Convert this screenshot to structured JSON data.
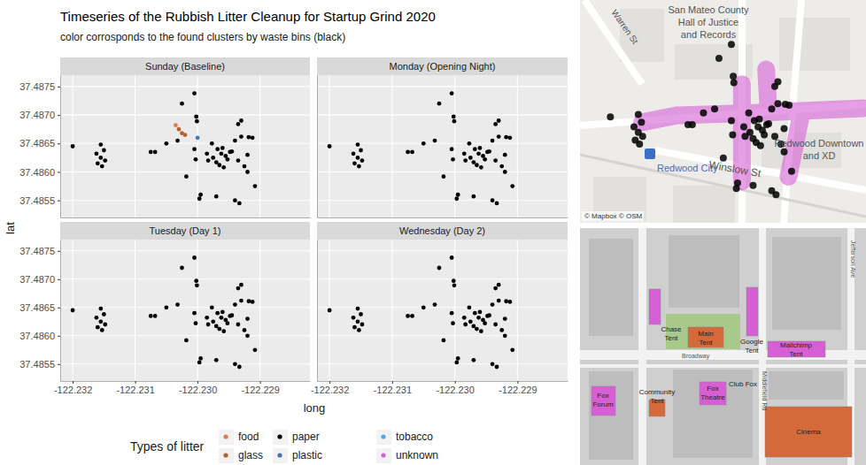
{
  "title": "Timeseries of the Rubbish Litter Cleanup for Startup Grind 2020",
  "subtitle": "color corrosponds to the found clusters by waste bins (black)",
  "xlabel": "long",
  "ylabel": "lat",
  "legend_title": "Types of litter",
  "legend_items": [
    {
      "name": "food",
      "color": "#e07b54"
    },
    {
      "name": "glass",
      "color": "#b8602c"
    },
    {
      "name": "paper",
      "color": "#000000"
    },
    {
      "name": "plastic",
      "color": "#3e78b2"
    },
    {
      "name": "tobacco",
      "color": "#5aa7dd"
    },
    {
      "name": "unknown",
      "color": "#d65fd6"
    }
  ],
  "chart_data": [
    {
      "type": "scatter",
      "title": "Sunday (Baseline)",
      "grid": true,
      "tick_labels": "y",
      "xlim": [
        -122.2322,
        -122.2282
      ],
      "ylim": [
        37.4852,
        37.4877
      ],
      "xticks": [
        -122.232,
        -122.231,
        -122.23,
        -122.229
      ],
      "yticks": [
        37.4855,
        {
          "value": 37.486,
          "label": "37.4860"
        },
        37.4865,
        {
          "value": 37.487,
          "label": "37.4870"
        },
        37.4875
      ],
      "series": [
        {
          "name": "paper",
          "x": [
            -122.232,
            -122.23155,
            -122.2315,
            -122.23162,
            -122.23155,
            -122.23148,
            -122.2316,
            -122.23153,
            -122.23075,
            -122.23068,
            -122.2305,
            -122.23032,
            -122.23025,
            -122.23005,
            -122.23002,
            -122.23001,
            -122.23005,
            -122.23003,
            -122.23018,
            -122.22995,
            -122.22997,
            -122.2297,
            -122.22977,
            -122.22968,
            -122.22962,
            -122.22955,
            -122.22975,
            -122.22983,
            -122.2297,
            -122.22952,
            -122.22948,
            -122.2296,
            -122.22985,
            -122.2293,
            -122.22935,
            -122.2294,
            -122.22945,
            -122.2293,
            -122.22918,
            -122.22912,
            -122.2292,
            -122.22935,
            -122.22925,
            -122.2292,
            -122.2294,
            -122.22933,
            -122.22908,
            -122.22965,
            -122.22958
          ],
          "y": [
            37.48645,
            37.48648,
            37.48638,
            37.48632,
            37.48625,
            37.4862,
            37.48615,
            37.4861,
            37.48635,
            37.48635,
            37.4865,
            37.48655,
            37.4872,
            37.48738,
            37.48697,
            37.48689,
            37.4864,
            37.48622,
            37.48592,
            37.4856,
            37.48553,
            37.48557,
            37.4865,
            37.4864,
            37.48632,
            37.48628,
            37.48625,
            37.4862,
            37.48617,
            37.48622,
            37.48635,
            37.48642,
            37.48632,
            37.4869,
            37.48684,
            37.48655,
            37.48636,
            37.48662,
            37.48661,
            37.4866,
            37.4863,
            37.4862,
            37.4861,
            37.486,
            37.4855,
            37.48545,
            37.48575,
            37.48612,
            37.48608
          ]
        },
        {
          "name": "food",
          "x": [
            -122.23035
          ],
          "y": [
            37.48682
          ]
        },
        {
          "name": "glass",
          "x": [
            -122.2303,
            -122.23025,
            -122.2302
          ],
          "y": [
            37.48675,
            37.48668,
            37.48665
          ]
        },
        {
          "name": "plastic",
          "x": [
            -122.23
          ],
          "y": [
            37.4866
          ]
        }
      ]
    },
    {
      "type": "scatter",
      "title": "Monday (Opening Night)",
      "grid": true,
      "tick_labels": false,
      "xlim": [
        -122.2322,
        -122.2282
      ],
      "ylim": [
        37.4852,
        37.4877
      ],
      "xticks": [
        -122.232,
        -122.231,
        -122.23,
        -122.229
      ],
      "yticks": [
        37.4855,
        37.486,
        37.4865,
        37.487,
        37.4875
      ],
      "series": [
        {
          "name": "paper",
          "x": [
            -122.232,
            -122.23155,
            -122.2315,
            -122.23162,
            -122.23155,
            -122.23148,
            -122.2316,
            -122.23153,
            -122.23075,
            -122.23068,
            -122.2305,
            -122.23032,
            -122.23025,
            -122.23005,
            -122.23002,
            -122.23001,
            -122.23005,
            -122.23003,
            -122.23018,
            -122.22995,
            -122.22997,
            -122.2297,
            -122.22977,
            -122.22968,
            -122.22962,
            -122.22955,
            -122.22975,
            -122.22983,
            -122.2297,
            -122.22952,
            -122.22948,
            -122.2296,
            -122.22985,
            -122.2293,
            -122.22935,
            -122.2294,
            -122.22945,
            -122.2293,
            -122.22918,
            -122.22912,
            -122.2292,
            -122.22935,
            -122.22925,
            -122.2292,
            -122.2294,
            -122.22933,
            -122.22908,
            -122.22965,
            -122.22958
          ],
          "y": [
            37.48645,
            37.48648,
            37.48638,
            37.48632,
            37.48625,
            37.4862,
            37.48615,
            37.4861,
            37.48635,
            37.48635,
            37.4865,
            37.48655,
            37.4872,
            37.48738,
            37.48697,
            37.48689,
            37.4864,
            37.48622,
            37.48592,
            37.4856,
            37.48553,
            37.48557,
            37.4865,
            37.4864,
            37.48632,
            37.48628,
            37.48625,
            37.4862,
            37.48617,
            37.48622,
            37.48635,
            37.48642,
            37.48632,
            37.4869,
            37.48684,
            37.48655,
            37.48636,
            37.48662,
            37.48661,
            37.4866,
            37.4863,
            37.4862,
            37.4861,
            37.486,
            37.4855,
            37.48545,
            37.48575,
            37.48612,
            37.48608
          ]
        }
      ]
    },
    {
      "type": "scatter",
      "title": "Tuesday (Day 1)",
      "grid": true,
      "tick_labels": true,
      "xlim": [
        -122.2322,
        -122.2282
      ],
      "ylim": [
        37.4852,
        37.4877
      ],
      "xticks": [
        -122.232,
        -122.231,
        {
          "value": -122.23,
          "label": "-122.230"
        },
        -122.229
      ],
      "yticks": [
        37.4855,
        {
          "value": 37.486,
          "label": "37.4860"
        },
        37.4865,
        {
          "value": 37.487,
          "label": "37.4870"
        },
        37.4875
      ],
      "series": [
        {
          "name": "paper",
          "x": [
            -122.232,
            -122.23155,
            -122.2315,
            -122.23162,
            -122.23155,
            -122.23148,
            -122.2316,
            -122.23153,
            -122.23075,
            -122.23068,
            -122.2305,
            -122.23032,
            -122.23025,
            -122.23005,
            -122.23002,
            -122.23001,
            -122.23005,
            -122.23003,
            -122.23018,
            -122.22995,
            -122.22997,
            -122.2297,
            -122.22977,
            -122.22968,
            -122.22962,
            -122.22955,
            -122.22975,
            -122.22983,
            -122.2297,
            -122.22952,
            -122.22948,
            -122.2296,
            -122.22985,
            -122.2293,
            -122.22935,
            -122.2294,
            -122.22945,
            -122.2293,
            -122.22918,
            -122.22912,
            -122.2292,
            -122.22935,
            -122.22925,
            -122.2292,
            -122.2294,
            -122.22933,
            -122.22908,
            -122.22965,
            -122.22958
          ],
          "y": [
            37.48645,
            37.48648,
            37.48638,
            37.48632,
            37.48625,
            37.4862,
            37.48615,
            37.4861,
            37.48635,
            37.48635,
            37.4865,
            37.48655,
            37.4872,
            37.48738,
            37.48697,
            37.48689,
            37.4864,
            37.48622,
            37.48592,
            37.4856,
            37.48553,
            37.48557,
            37.4865,
            37.4864,
            37.48632,
            37.48628,
            37.48625,
            37.4862,
            37.48617,
            37.48622,
            37.48635,
            37.48642,
            37.48632,
            37.4869,
            37.48684,
            37.48655,
            37.48636,
            37.48662,
            37.48661,
            37.4866,
            37.4863,
            37.4862,
            37.4861,
            37.486,
            37.4855,
            37.48545,
            37.48575,
            37.48612,
            37.48608
          ]
        }
      ]
    },
    {
      "type": "scatter",
      "title": "Wednesday (Day 2)",
      "grid": true,
      "tick_labels": "x",
      "xlim": [
        -122.2322,
        -122.2282
      ],
      "ylim": [
        37.4852,
        37.4877
      ],
      "xticks": [
        -122.232,
        -122.231,
        {
          "value": -122.23,
          "label": "-122.230"
        },
        -122.229
      ],
      "yticks": [
        37.4855,
        37.486,
        37.4865,
        37.487,
        37.4875
      ],
      "series": [
        {
          "name": "paper",
          "x": [
            -122.232,
            -122.23155,
            -122.2315,
            -122.23162,
            -122.23155,
            -122.23148,
            -122.2316,
            -122.23153,
            -122.23075,
            -122.23068,
            -122.2305,
            -122.23032,
            -122.23025,
            -122.23005,
            -122.23002,
            -122.23001,
            -122.23005,
            -122.23003,
            -122.23018,
            -122.22995,
            -122.22997,
            -122.2297,
            -122.22977,
            -122.22968,
            -122.22962,
            -122.22955,
            -122.22975,
            -122.22983,
            -122.2297,
            -122.22952,
            -122.22948,
            -122.2296,
            -122.22985,
            -122.2293,
            -122.22935,
            -122.2294,
            -122.22945,
            -122.2293,
            -122.22918,
            -122.22912,
            -122.2292,
            -122.22935,
            -122.22925,
            -122.2292,
            -122.2294,
            -122.22933,
            -122.22908,
            -122.22965,
            -122.22958
          ],
          "y": [
            37.48645,
            37.48648,
            37.48638,
            37.48632,
            37.48625,
            37.4862,
            37.48615,
            37.4861,
            37.48635,
            37.48635,
            37.4865,
            37.48655,
            37.4872,
            37.48738,
            37.48697,
            37.48689,
            37.4864,
            37.48622,
            37.48592,
            37.4856,
            37.48553,
            37.48557,
            37.4865,
            37.4864,
            37.48632,
            37.48628,
            37.48625,
            37.4862,
            37.48617,
            37.48622,
            37.48635,
            37.48642,
            37.48632,
            37.4869,
            37.48684,
            37.48655,
            37.48636,
            37.48662,
            37.48661,
            37.4866,
            37.4863,
            37.4862,
            37.4861,
            37.486,
            37.4855,
            37.48545,
            37.48575,
            37.48612,
            37.48608
          ]
        }
      ]
    }
  ],
  "street_map": {
    "xlim": [
      -122.23249,
      -122.22788
    ],
    "ylim": [
      37.48509,
      37.48795
    ],
    "labels": [
      {
        "text": [
          "Warren St"
        ]
      },
      {
        "text": [
          "San Mateo County",
          "Hall of Justice",
          "and Records"
        ]
      },
      {
        "text": [
          "Redwood City"
        ]
      },
      {
        "text": [
          "Winslow St"
        ]
      },
      {
        "text": [
          "Redwood Downtown",
          "and XD"
        ]
      },
      {
        "text": [
          "© Mapbox © OSM"
        ]
      }
    ],
    "series": [
      {
        "name": "unknown",
        "x": [
          -122.23149,
          -122.23092,
          -122.2297,
          -122.22792,
          null,
          -122.22988,
          -122.22988,
          null,
          -122.22949,
          -122.22945,
          null,
          -122.22892,
          -122.22913
        ],
        "y": [
          37.48638,
          37.48647,
          37.4865,
          37.48656,
          null,
          37.48687,
          37.48562,
          null,
          37.48706,
          37.4865,
          null,
          37.4865,
          37.48568
        ]
      }
    ]
  },
  "venue_map": {
    "venues": [
      {
        "text": [
          "Chase",
          "Tent"
        ],
        "color": "#d65fd6"
      },
      {
        "text": [
          "Main",
          "Tent"
        ],
        "color": "#d4693a"
      },
      {
        "text": [
          "Google",
          "Tent"
        ],
        "color": "#d65fd6"
      },
      {
        "text": [
          "Mailchimp",
          "Tent"
        ],
        "color": "#d65fd6"
      },
      {
        "text": [
          "Fox",
          "Forum"
        ],
        "color": "#d65fd6"
      },
      {
        "text": [
          "Community",
          "Tent"
        ],
        "color": "#d4693a"
      },
      {
        "text": [
          "Fox",
          "Theatre"
        ],
        "color": "#d65fd6"
      },
      {
        "text": [
          "Cinema"
        ],
        "color": "#d4693a"
      }
    ],
    "labels": [
      {
        "text": [
          "Club Fox"
        ]
      }
    ],
    "streets": [
      "Broadway",
      "Jefferson Ave",
      "Middlefield Rd"
    ]
  }
}
